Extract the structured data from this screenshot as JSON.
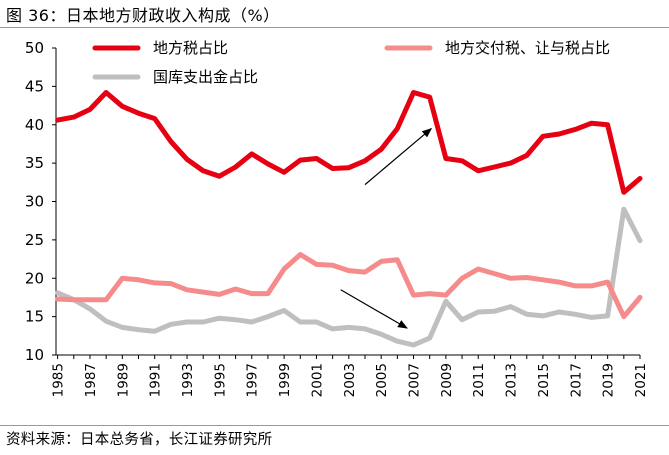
{
  "title": "图 36：日本地方财政收入构成（%）",
  "source": "资料来源：日本总务省，长江证券研究所",
  "chart_data": {
    "type": "line",
    "title": "图 36：日本地方财政收入构成（%）",
    "xlabel": "",
    "ylabel": "",
    "ylim": [
      10,
      50
    ],
    "yticks": [
      10,
      15,
      20,
      25,
      30,
      35,
      40,
      45,
      50
    ],
    "xtick_labels": [
      "1985",
      "1987",
      "1989",
      "1991",
      "1993",
      "1995",
      "1997",
      "1999",
      "2001",
      "2003",
      "2005",
      "2007",
      "2009",
      "2011",
      "2013",
      "2015",
      "2017",
      "2019",
      "2021"
    ],
    "x": [
      1985,
      1986,
      1987,
      1988,
      1989,
      1990,
      1991,
      1992,
      1993,
      1994,
      1995,
      1996,
      1997,
      1998,
      1999,
      2000,
      2001,
      2002,
      2003,
      2004,
      2005,
      2006,
      2007,
      2008,
      2009,
      2010,
      2011,
      2012,
      2013,
      2014,
      2015,
      2016,
      2017,
      2018,
      2019,
      2020,
      2021
    ],
    "series": [
      {
        "name": "地方税占比",
        "color": "#e60012",
        "values": [
          40.6,
          41.0,
          42.0,
          44.2,
          42.4,
          41.5,
          40.8,
          37.8,
          35.5,
          34.0,
          33.3,
          34.5,
          36.2,
          34.9,
          33.8,
          35.4,
          35.6,
          34.3,
          34.4,
          35.3,
          36.8,
          39.5,
          44.2,
          43.6,
          35.6,
          35.3,
          34.0,
          34.5,
          35.0,
          36.0,
          38.5,
          38.8,
          39.4,
          40.2,
          40.0,
          31.2,
          33.0
        ]
      },
      {
        "name": "地方交付税、让与税占比",
        "color": "#f68b8b",
        "values": [
          17.3,
          17.2,
          17.2,
          17.2,
          20.0,
          19.8,
          19.4,
          19.3,
          18.5,
          18.2,
          17.9,
          18.6,
          18.0,
          18.0,
          21.2,
          23.1,
          21.8,
          21.7,
          21.0,
          20.8,
          22.2,
          22.4,
          17.8,
          18.0,
          17.8,
          20.0,
          21.2,
          20.6,
          20.0,
          20.1,
          19.8,
          19.5,
          19.0,
          19.0,
          19.5,
          15.0,
          17.5
        ]
      },
      {
        "name": "国库支出金占比",
        "color": "#bfbfbf",
        "values": [
          18.1,
          17.2,
          16.0,
          14.4,
          13.6,
          13.3,
          13.1,
          14.0,
          14.3,
          14.3,
          14.8,
          14.6,
          14.3,
          15.0,
          15.8,
          14.3,
          14.3,
          13.4,
          13.6,
          13.4,
          12.7,
          11.8,
          11.3,
          12.2,
          17.0,
          14.6,
          15.6,
          15.7,
          16.3,
          15.3,
          15.1,
          15.6,
          15.3,
          14.9,
          15.1,
          29.0,
          24.9
        ]
      }
    ],
    "legend": [
      {
        "label": "地方税占比",
        "color": "#e60012",
        "position": "top-left"
      },
      {
        "label": "地方交付税、让与税占比",
        "color": "#f68b8b",
        "position": "top-right"
      },
      {
        "label": "国库支出金占比",
        "color": "#bfbfbf",
        "position": "top-left-second-row"
      }
    ],
    "annotations": [
      {
        "type": "arrow",
        "from": [
          2004.0,
          32.2
        ],
        "to": [
          2008.1,
          39.5
        ],
        "label": ""
      },
      {
        "type": "arrow",
        "from": [
          2002.5,
          18.5
        ],
        "to": [
          2006.6,
          13.5
        ],
        "label": ""
      }
    ]
  }
}
